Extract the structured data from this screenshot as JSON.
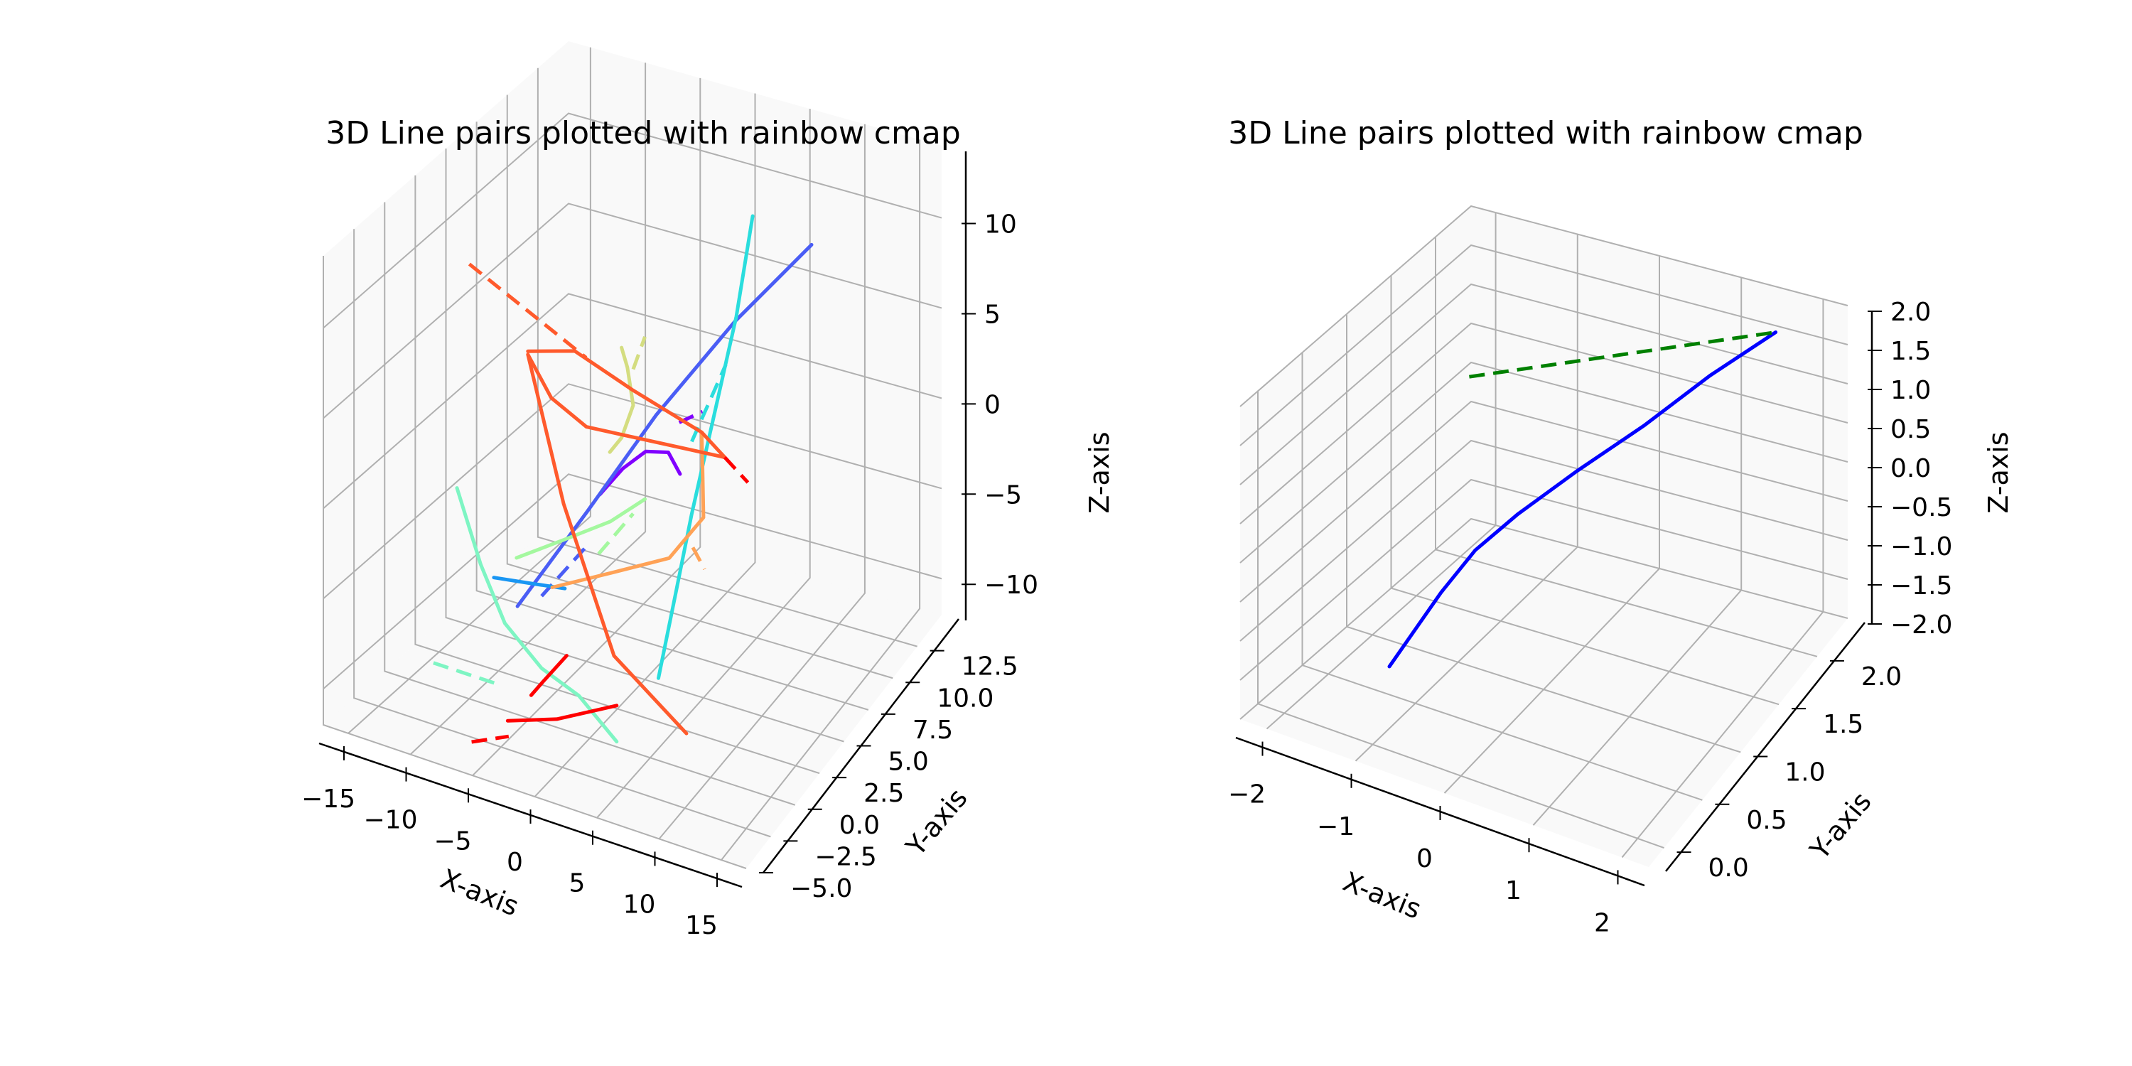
{
  "figure": {
    "background": "#ffffff"
  },
  "chart_data": [
    {
      "type": "line3d",
      "title": "3D Line pairs plotted with rainbow cmap",
      "xlabel": "X-axis",
      "ylabel": "Y-axis",
      "zlabel": "Z-axis",
      "xlim": [
        -17,
        17
      ],
      "ylim": [
        -5,
        15
      ],
      "zlim": [
        -12,
        14
      ],
      "xticks": [
        -15,
        -10,
        -5,
        0,
        5,
        10,
        15
      ],
      "xticklabels": [
        "−15",
        "−10",
        "−5",
        "0",
        "5",
        "10",
        "15"
      ],
      "yticks": [
        -5,
        -2.5,
        0,
        2.5,
        5,
        7.5,
        10,
        12.5
      ],
      "yticklabels": [
        "−5.0",
        "−2.5",
        "0.0",
        "2.5",
        "5.0",
        "7.5",
        "10.0",
        "12.5"
      ],
      "zticks": [
        -10,
        -5,
        0,
        5,
        10
      ],
      "zticklabels": [
        "−10",
        "−5",
        "0",
        "5",
        "10"
      ],
      "grid": true,
      "colormap": "rainbow",
      "series": [
        {
          "color": "#8000ff",
          "style": "solid",
          "points": [
            [
              -1,
              2,
              0
            ],
            [
              0,
              3,
              1
            ],
            [
              1,
              4,
              1.5
            ],
            [
              2,
              5,
              1
            ],
            [
              3,
              5,
              0
            ]
          ]
        },
        {
          "color": "#8000ff",
          "style": "dashed",
          "points": [
            [
              2,
              6,
              2
            ],
            [
              4,
              6,
              3
            ]
          ]
        },
        {
          "color": "#4a5df5",
          "style": "solid",
          "points": [
            [
              -6,
              0,
              -6
            ],
            [
              -3,
              3,
              -2
            ],
            [
              0,
              6,
              2
            ],
            [
              4,
              9,
              6
            ],
            [
              8,
              12,
              9
            ]
          ]
        },
        {
          "color": "#4a5df5",
          "style": "dashed",
          "points": [
            [
              -4,
              0,
              -5
            ],
            [
              -2,
              2,
              -3
            ]
          ]
        },
        {
          "color": "#1996f3",
          "style": "solid",
          "points": [
            [
              -7,
              -1,
              -4
            ],
            [
              -5,
              0,
              -4.5
            ],
            [
              -3,
              1,
              -5
            ]
          ]
        },
        {
          "color": "#2adddd",
          "style": "solid",
          "points": [
            [
              3,
              3,
              -10
            ],
            [
              3.5,
              4,
              -6
            ],
            [
              4,
              5,
              -2
            ],
            [
              5,
              6,
              3
            ],
            [
              6,
              7,
              8
            ],
            [
              6.5,
              8,
              13
            ]
          ]
        },
        {
          "color": "#2adddd",
          "style": "dashed",
          "points": [
            [
              4,
              5,
              2
            ],
            [
              6,
              6,
              6
            ]
          ]
        },
        {
          "color": "#7ef5c3",
          "style": "solid",
          "points": [
            [
              -14,
              3,
              -3
            ],
            [
              -11,
              2,
              -6
            ],
            [
              -8,
              1,
              -8
            ],
            [
              -4,
              0,
              -9
            ],
            [
              0,
              -1,
              -9
            ],
            [
              4,
              -2,
              -10
            ]
          ]
        },
        {
          "color": "#7ef5c3",
          "style": "dashed",
          "points": [
            [
              -11,
              -2,
              -9
            ],
            [
              -6,
              -2,
              -9
            ]
          ]
        },
        {
          "color": "#a4f89f",
          "style": "solid",
          "points": [
            [
              -8,
              2,
              -5
            ],
            [
              -5,
              3,
              -4
            ],
            [
              -2,
              4,
              -3
            ],
            [
              0,
              5,
              -2
            ]
          ]
        },
        {
          "color": "#a4f89f",
          "style": "dashed",
          "points": [
            [
              -3,
              4,
              -5
            ],
            [
              -1,
              5,
              -3
            ]
          ]
        },
        {
          "color": "#d4dd80",
          "style": "solid",
          "points": [
            [
              -3,
              5,
              0
            ],
            [
              -2,
              5,
              1
            ],
            [
              -1,
              5,
              3
            ],
            [
              -1.5,
              5,
              5
            ],
            [
              -2,
              5,
              6
            ]
          ]
        },
        {
          "color": "#d4dd80",
          "style": "dashed",
          "points": [
            [
              -1,
              5,
              5
            ],
            [
              0,
              5,
              7
            ]
          ]
        },
        {
          "color": "#ffa256",
          "style": "solid",
          "points": [
            [
              -5,
              2,
              -6
            ],
            [
              -1,
              3,
              -5
            ],
            [
              3,
              4,
              -4
            ],
            [
              5,
              5,
              -2
            ],
            [
              4,
              6,
              0
            ],
            [
              3,
              7,
              1
            ]
          ]
        },
        {
          "color": "#ffa256",
          "style": "dashed",
          "points": [
            [
              5,
              4,
              -3
            ],
            [
              6,
              4,
              -4
            ]
          ]
        },
        {
          "color": "#ff5a2c",
          "style": "solid",
          "points": [
            [
              -9,
              4,
              5
            ],
            [
              -6,
              5,
              5
            ],
            [
              -2,
              6,
              3
            ],
            [
              3,
              7,
              1
            ],
            [
              5,
              7,
              0
            ],
            [
              -5,
              5,
              1
            ],
            [
              -8,
              5,
              2
            ],
            [
              -10,
              5,
              4
            ],
            [
              -5,
              3,
              -2
            ],
            [
              2,
              0,
              -7
            ],
            [
              8,
              0,
              -10
            ]
          ]
        },
        {
          "color": "#ff5a2c",
          "style": "dashed",
          "points": [
            [
              -15,
              5,
              8
            ],
            [
              -6,
              6,
              4
            ]
          ]
        },
        {
          "color": "#ff0000",
          "style": "solid",
          "points": [
            [
              -4,
              -3,
              -10
            ],
            [
              0,
              -3,
              -9
            ],
            [
              4,
              -2,
              -8
            ]
          ]
        },
        {
          "color": "#ff0000",
          "style": "solid",
          "points": [
            [
              -3,
              -2,
              -9
            ],
            [
              -2,
              -2,
              -8
            ],
            [
              -1,
              -1,
              -7
            ]
          ]
        },
        {
          "color": "#ff0000",
          "style": "dashed",
          "points": [
            [
              -6,
              -4,
              -11
            ],
            [
              -3,
              -4,
              -10
            ]
          ]
        },
        {
          "color": "#ff0000",
          "style": "dashed",
          "points": [
            [
              5,
              7,
              0
            ],
            [
              7,
              7,
              -1
            ]
          ]
        }
      ]
    },
    {
      "type": "line3d",
      "title": "3D Line pairs plotted with rainbow cmap",
      "xlabel": "X-axis",
      "ylabel": "Y-axis",
      "zlabel": "Z-axis",
      "xlim": [
        -2.3,
        2.3
      ],
      "ylim": [
        -0.2,
        2.4
      ],
      "zlim": [
        -2.0,
        2.0
      ],
      "xticks": [
        -2,
        -1,
        0,
        1,
        2
      ],
      "xticklabels": [
        "−2",
        "−1",
        "0",
        "1",
        "2"
      ],
      "yticks": [
        0,
        0.5,
        1.0,
        1.5,
        2.0
      ],
      "yticklabels": [
        "0.0",
        "0.5",
        "1.0",
        "1.5",
        "2.0"
      ],
      "zticks": [
        -2,
        -1.5,
        -1,
        -0.5,
        0,
        0.5,
        1,
        1.5,
        2
      ],
      "zticklabels": [
        "−2.0",
        "−1.5",
        "−1.0",
        "−0.5",
        "0.0",
        "0.5",
        "1.0",
        "1.5",
        "2.0"
      ],
      "grid": true,
      "series": [
        {
          "color": "#0000ff",
          "style": "solid",
          "points": [
            [
              -1.2,
              0.4,
              -1.5
            ],
            [
              -1.0,
              0.8,
              -0.9
            ],
            [
              -0.8,
              1.0,
              -0.5
            ],
            [
              -0.5,
              1.2,
              -0.15
            ],
            [
              0,
              1.4,
              0.35
            ],
            [
              0.6,
              1.6,
              0.9
            ],
            [
              1.2,
              1.8,
              1.5
            ],
            [
              1.8,
              2.0,
              2.0
            ]
          ]
        },
        {
          "color": "#008000",
          "style": "dashed",
          "points": [
            [
              -2,
              2.1,
              0.2
            ],
            [
              1.8,
              2.0,
              2.0
            ]
          ]
        }
      ]
    }
  ]
}
